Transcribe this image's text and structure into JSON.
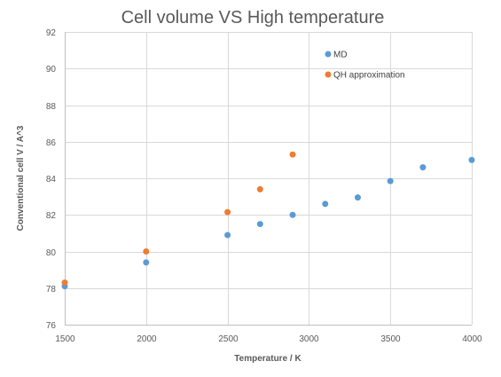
{
  "chart_data": {
    "type": "scatter",
    "title": "Cell volume VS High temperature",
    "xlabel": "Temperature / K",
    "ylabel": "Conventional  cell V / A^3",
    "xlim": [
      1500,
      4000
    ],
    "ylim": [
      76,
      92
    ],
    "x_ticks": [
      1500,
      2000,
      2500,
      3000,
      3500,
      4000
    ],
    "y_ticks": [
      76,
      78,
      80,
      82,
      84,
      86,
      88,
      90,
      92
    ],
    "grid": true,
    "legend_position": "top-right",
    "series": [
      {
        "name": "MD",
        "color": "#5B9BD5",
        "points": [
          {
            "x": 1500,
            "y": 78.1
          },
          {
            "x": 2000,
            "y": 79.4
          },
          {
            "x": 2500,
            "y": 80.9
          },
          {
            "x": 2700,
            "y": 81.5
          },
          {
            "x": 2900,
            "y": 82.0
          },
          {
            "x": 3100,
            "y": 82.6
          },
          {
            "x": 3300,
            "y": 82.95
          },
          {
            "x": 3500,
            "y": 83.85
          },
          {
            "x": 3700,
            "y": 84.6
          },
          {
            "x": 4000,
            "y": 85.0
          }
        ]
      },
      {
        "name": "QH approximation",
        "color": "#ED7D31",
        "points": [
          {
            "x": 1500,
            "y": 78.3
          },
          {
            "x": 2000,
            "y": 80.0
          },
          {
            "x": 2500,
            "y": 82.15
          },
          {
            "x": 2700,
            "y": 83.4
          },
          {
            "x": 2900,
            "y": 85.3
          }
        ]
      }
    ]
  }
}
